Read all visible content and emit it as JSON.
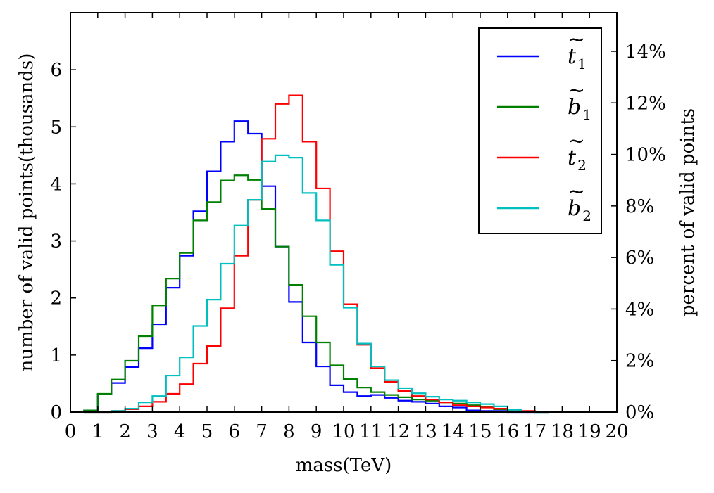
{
  "chart_data": {
    "type": "line",
    "style": "step-histogram",
    "title": "",
    "xlabel": "mass(TeV)",
    "ylabel": "number of valid points(thousands)",
    "ylabel_right": "percent of valid points",
    "xlim": [
      0,
      20
    ],
    "ylim": [
      0,
      7
    ],
    "ylim_right_percent": [
      0,
      15.5
    ],
    "x_ticks": [
      0,
      1,
      2,
      3,
      4,
      5,
      6,
      7,
      8,
      9,
      10,
      11,
      12,
      13,
      14,
      15,
      16,
      17,
      18,
      19,
      20
    ],
    "y_ticks": [
      0,
      1,
      2,
      3,
      4,
      5,
      6
    ],
    "y_ticks_right": [
      "0%",
      "2%",
      "4%",
      "6%",
      "8%",
      "10%",
      "12%",
      "14%"
    ],
    "legend_position": "top-right",
    "bin_edges": [
      0.5,
      1,
      1.5,
      2,
      2.5,
      3,
      3.5,
      4,
      4.5,
      5,
      5.5,
      6,
      6.5,
      7,
      7.5,
      8,
      8.5,
      9,
      9.5,
      10,
      10.5,
      11,
      11.5,
      12,
      12.5,
      13,
      13.5,
      14,
      14.5,
      15,
      15.5,
      16,
      16.5,
      17,
      17.5
    ],
    "series": [
      {
        "name": "t1",
        "label_base": "t",
        "label_sub": "1",
        "color": "#0000ff",
        "values": [
          0.03,
          0.31,
          0.51,
          0.79,
          1.12,
          1.54,
          2.18,
          2.74,
          3.52,
          4.22,
          4.74,
          5.1,
          4.88,
          3.96,
          2.9,
          1.93,
          1.22,
          0.8,
          0.47,
          0.35,
          0.28,
          0.3,
          0.25,
          0.2,
          0.18,
          0.15,
          0.1,
          0.08,
          0.03,
          0.02,
          0.02,
          0.0,
          0.0,
          0.0
        ]
      },
      {
        "name": "b1",
        "label_base": "b",
        "label_sub": "1",
        "color": "#008000",
        "values": [
          0.03,
          0.32,
          0.57,
          0.9,
          1.33,
          1.87,
          2.34,
          2.79,
          3.36,
          3.68,
          4.06,
          4.15,
          4.07,
          3.56,
          2.9,
          2.23,
          1.68,
          1.22,
          0.82,
          0.58,
          0.43,
          0.35,
          0.3,
          0.26,
          0.22,
          0.2,
          0.17,
          0.15,
          0.12,
          0.09,
          0.05,
          0.03,
          0.01,
          0.0
        ]
      },
      {
        "name": "t2",
        "label_base": "t",
        "label_sub": "2",
        "color": "#ff0000",
        "values": [
          0.0,
          0.0,
          0.02,
          0.05,
          0.1,
          0.18,
          0.32,
          0.49,
          0.85,
          1.16,
          1.82,
          2.74,
          3.72,
          4.79,
          5.4,
          5.55,
          4.74,
          3.92,
          2.82,
          1.89,
          1.18,
          0.77,
          0.53,
          0.37,
          0.28,
          0.22,
          0.17,
          0.12,
          0.1,
          0.08,
          0.06,
          0.04,
          0.02,
          0.01
        ]
      },
      {
        "name": "b2",
        "label_base": "b",
        "label_sub": "2",
        "color": "#00bfbf",
        "values": [
          0.0,
          0.0,
          0.02,
          0.06,
          0.17,
          0.28,
          0.64,
          0.96,
          1.51,
          1.97,
          2.6,
          3.27,
          3.72,
          4.39,
          4.5,
          4.46,
          3.84,
          3.36,
          2.58,
          1.83,
          1.2,
          0.8,
          0.56,
          0.42,
          0.33,
          0.27,
          0.22,
          0.2,
          0.17,
          0.14,
          0.1,
          0.04,
          0.01,
          0.0
        ]
      }
    ]
  }
}
